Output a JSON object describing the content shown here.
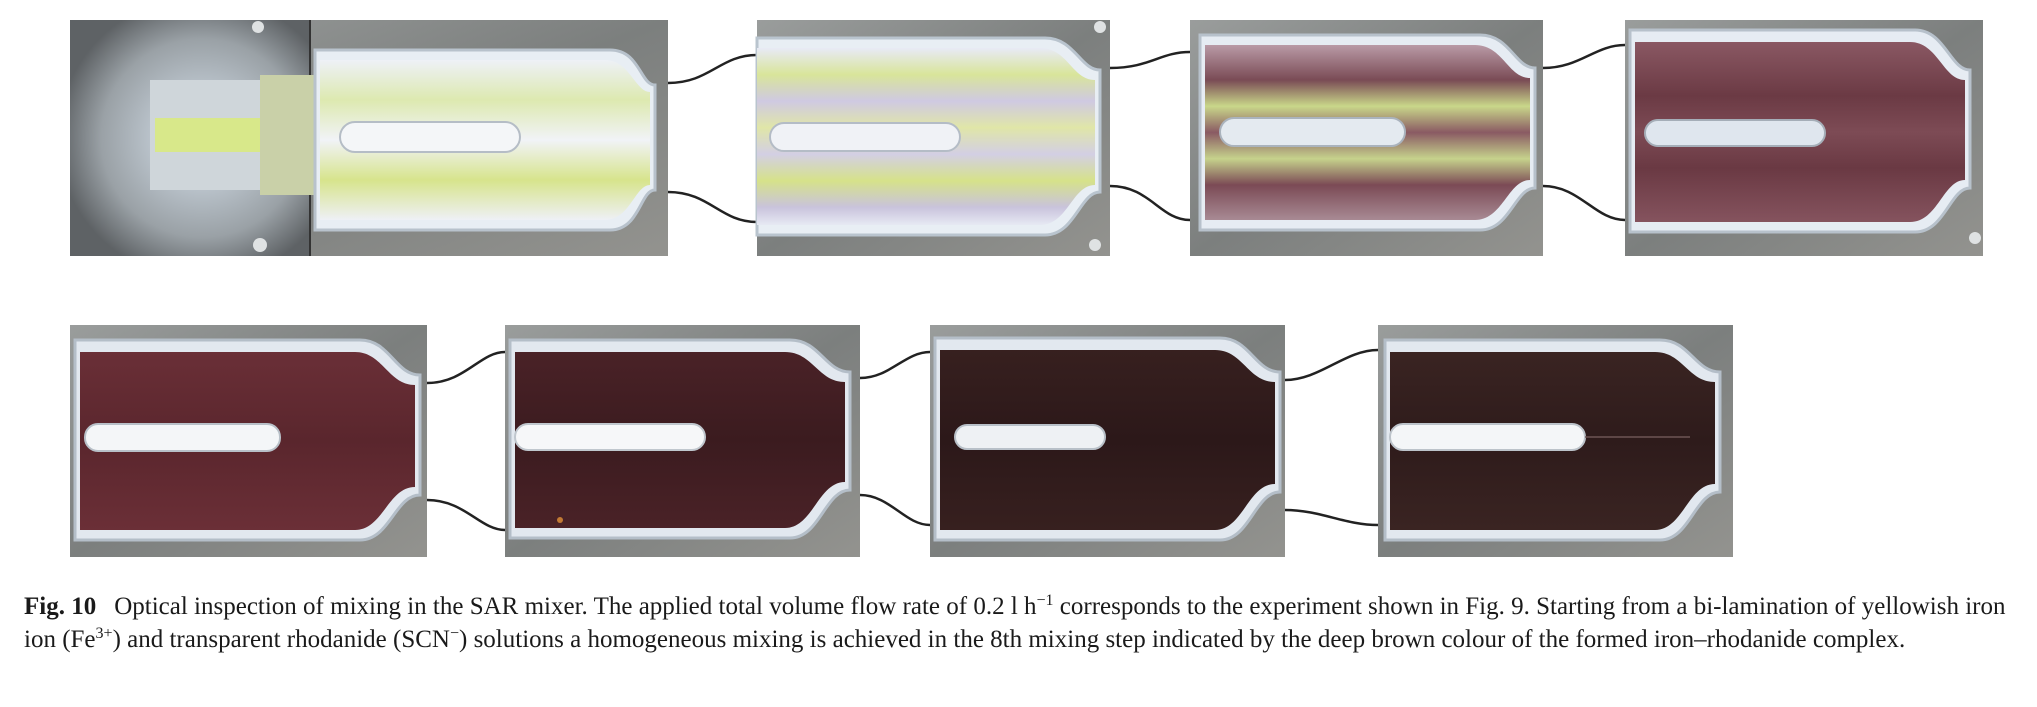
{
  "figure": {
    "images": [
      {
        "step": 1,
        "photo": "micrograph-mixing-step-1"
      },
      {
        "step": 2,
        "photo": "micrograph-mixing-step-2"
      },
      {
        "step": 3,
        "photo": "micrograph-mixing-step-3"
      },
      {
        "step": 4,
        "photo": "micrograph-mixing-step-4"
      },
      {
        "step": 5,
        "photo": "micrograph-mixing-step-5"
      },
      {
        "step": 6,
        "photo": "micrograph-mixing-step-6"
      },
      {
        "step": 7,
        "photo": "micrograph-mixing-step-7"
      },
      {
        "step": 8,
        "photo": "micrograph-mixing-step-8"
      }
    ],
    "colors": {
      "metal_plate": "#8a8d8c",
      "channel_wall": "#e8eef4",
      "iron_solution": "#d8e88a",
      "rhodanide_solution": "#e9ecf6",
      "complex_dark": "#2e1d1e",
      "complex_red": "#6e3337",
      "connector_line": "#222222"
    }
  },
  "caption": {
    "label": "Fig. 10",
    "part1": "Optical inspection of mixing in the SAR mixer. The applied total volume flow rate of 0.2 l h",
    "sup1": "−1",
    "part2": " corresponds to the experiment shown in Fig. 9. Starting from a bi-lamination of yellowish iron ion (Fe",
    "sup2": "3+",
    "part3": ") and transparent rhodanide (SCN",
    "sup3": "−",
    "part4": ") solutions a homogeneous mixing is achieved in the 8th mixing step indicated by the deep brown colour of the formed iron–rhodanide complex."
  }
}
